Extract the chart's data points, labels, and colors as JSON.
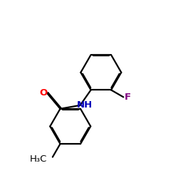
{
  "bg_color": "#ffffff",
  "bond_color": "#000000",
  "bond_lw": 1.6,
  "dbo": 0.018,
  "o_color": "#ff0000",
  "nh_color": "#0000bb",
  "f_color": "#800080",
  "ch3_color": "#000000",
  "fs": 9.5,
  "fs_h3c": 9.5,
  "xlim": [
    0.0,
    2.8
  ],
  "ylim": [
    -0.3,
    3.0
  ],
  "figsize": [
    2.5,
    2.5
  ],
  "dpi": 100
}
